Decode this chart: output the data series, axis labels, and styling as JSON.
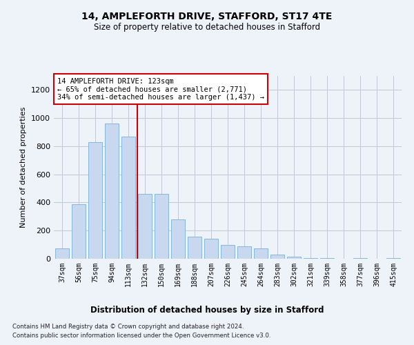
{
  "title1": "14, AMPLEFORTH DRIVE, STAFFORD, ST17 4TE",
  "title2": "Size of property relative to detached houses in Stafford",
  "xlabel": "Distribution of detached houses by size in Stafford",
  "ylabel": "Number of detached properties",
  "categories": [
    "37sqm",
    "56sqm",
    "75sqm",
    "94sqm",
    "113sqm",
    "132sqm",
    "150sqm",
    "169sqm",
    "188sqm",
    "207sqm",
    "226sqm",
    "245sqm",
    "264sqm",
    "283sqm",
    "302sqm",
    "321sqm",
    "339sqm",
    "358sqm",
    "377sqm",
    "396sqm",
    "415sqm"
  ],
  "values": [
    75,
    390,
    830,
    960,
    870,
    460,
    460,
    280,
    155,
    140,
    100,
    90,
    75,
    30,
    15,
    5,
    5,
    0,
    5,
    0,
    5
  ],
  "bar_color": "#c8d9ef",
  "bar_edge_color": "#7aafd4",
  "vline_color": "#cc0000",
  "annotation_text": "14 AMPLEFORTH DRIVE: 123sqm\n← 65% of detached houses are smaller (2,771)\n34% of semi-detached houses are larger (1,437) →",
  "annotation_box_color": "#ffffff",
  "annotation_box_edge": "#cc0000",
  "ylim": [
    0,
    1300
  ],
  "yticks": [
    0,
    200,
    400,
    600,
    800,
    1000,
    1200
  ],
  "footer1": "Contains HM Land Registry data © Crown copyright and database right 2024.",
  "footer2": "Contains public sector information licensed under the Open Government Licence v3.0.",
  "bg_color": "#eef2f9",
  "plot_bg_color": "#eef2f9"
}
